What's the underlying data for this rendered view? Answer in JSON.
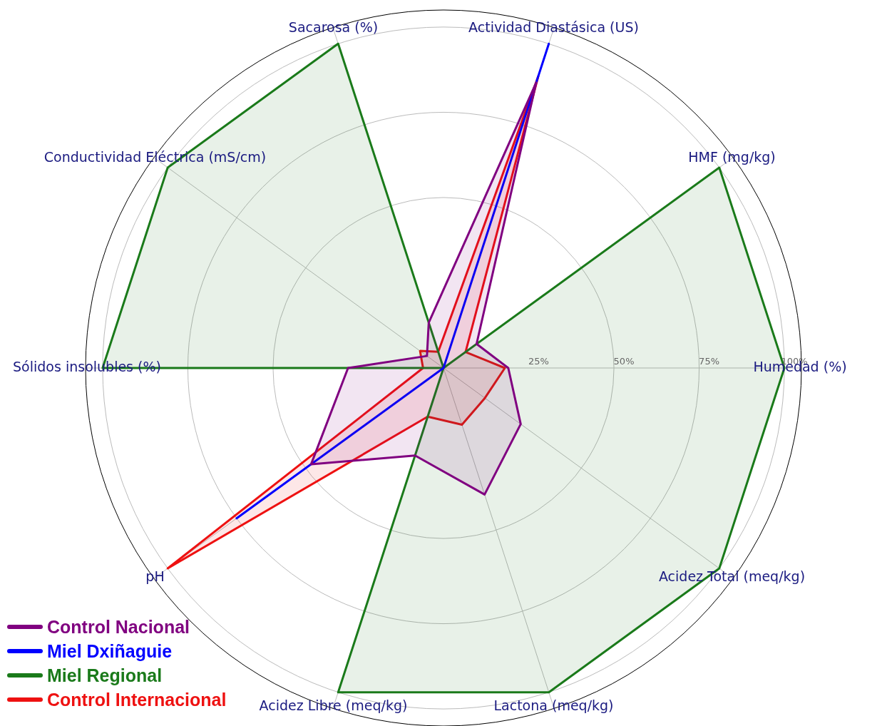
{
  "chart_data": {
    "type": "radar",
    "categories": [
      "Actividad Diastásica (US)",
      "HMF (mg/kg)",
      "Humedad (%)",
      "Acidez Total (meq/kg)",
      "Lactona (meq/kg)",
      "Acidez Libre (meq/kg)",
      "pH",
      "Sólidos insolubles (%)",
      "Conductividad Eléctrica (mS/cm)",
      "Sacarosa (%)"
    ],
    "series": [
      {
        "name": "Control Nacional",
        "color": "#800080",
        "values": [
          88,
          12,
          19,
          28,
          39,
          27,
          48,
          28,
          6,
          14
        ]
      },
      {
        "name": "Miel Dxiñaguie",
        "color": "#0000ff",
        "values": [
          100,
          0,
          0,
          0,
          0,
          0,
          75,
          0,
          0,
          0
        ]
      },
      {
        "name": "Miel Regional",
        "color": "#1a7a1a",
        "values": [
          0,
          100,
          100,
          100,
          100,
          100,
          0,
          100,
          100,
          100
        ]
      },
      {
        "name": "Control Internacional",
        "color": "#ee1111",
        "values": [
          90,
          8,
          18,
          15,
          17.5,
          15,
          100,
          6,
          8.5,
          5
        ]
      }
    ],
    "ylim": [
      0,
      105
    ],
    "yticks": [
      {
        "value": 25,
        "label": "25%"
      },
      {
        "value": 50,
        "label": "50%"
      },
      {
        "value": 75,
        "label": "75%"
      },
      {
        "value": 100,
        "label": "100%"
      }
    ],
    "grid": true,
    "legend": "bottom left"
  }
}
